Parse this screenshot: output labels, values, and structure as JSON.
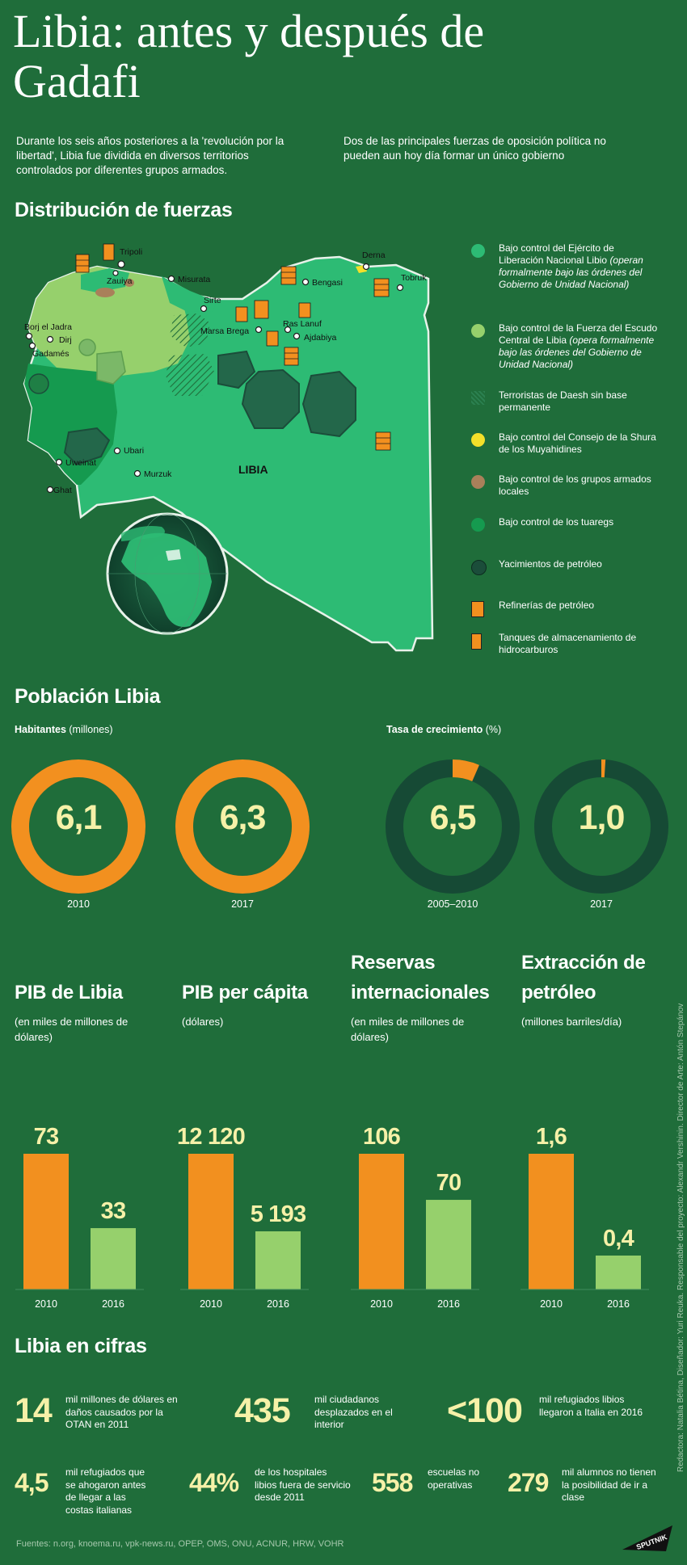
{
  "title": "Libia: antes y después de Gadafi",
  "intro_left": "Durante los seis años posteriores a la 'revolución por la libertad', Libia fue dividida en diversos territorios controlados por diferentes grupos armados.",
  "intro_right": "Dos de las principales fuerzas de oposición política no pueden aun hoy día formar un único gobierno",
  "map_section": {
    "title": "Distribución de fuerzas",
    "country_label": "LIBIA",
    "cities": [
      "Tripoli",
      "Zauiya",
      "Misurata",
      "Derna",
      "Bengasi",
      "Tobruk",
      "Sirte",
      "Marsa Brega",
      "Ras Lanuf",
      "Ajdabiya",
      "Borj el Jadra",
      "Dirj",
      "Gadamés",
      "Ubari",
      "Uweinat",
      "Murzuk",
      "Ghat"
    ],
    "legend": [
      {
        "text": "Bajo control del Ejército de Liberación Nacional Libio",
        "note": "(operan formalmente bajo las órdenes del Gobierno de Unidad Nacional)",
        "color": "#2dbb74"
      },
      {
        "text": "Bajo control de la Fuerza del Escudo Central de Libia",
        "note": "(opera formalmente bajo las órdenes del Gobierno de Unidad Nacional)",
        "color": "#96d06c"
      },
      {
        "text": "Terroristas de Daesh sin base permanente",
        "note": "",
        "color": "#1f6d3a"
      },
      {
        "text": "Bajo control del Consejo de la Shura de los Muyahidines",
        "note": "",
        "color": "#f3e02a"
      },
      {
        "text": "Bajo control de los grupos armados locales",
        "note": "",
        "color": "#a9805a"
      },
      {
        "text": "Bajo control de los tuaregs",
        "note": "",
        "color": "#159a4f"
      },
      {
        "text": "Yacimientos de petróleo",
        "note": "",
        "color": "#1b4d3a"
      },
      {
        "text": "Refinerías de petróleo",
        "note": "",
        "color": "#f2901f"
      },
      {
        "text": "Tanques de almacenamiento de hidrocarburos",
        "note": "",
        "color": "#f2901f"
      }
    ]
  },
  "population": {
    "title": "Población  Libia",
    "hab_label": "Habitantes",
    "hab_unit": "(millones)",
    "rate_label": "Tasa de crecimiento",
    "rate_unit": "(%)",
    "rings": [
      {
        "value": "6,1",
        "year": "2010",
        "fraction": 1.0
      },
      {
        "value": "6,3",
        "year": "2017",
        "fraction": 1.0
      },
      {
        "value": "6,5",
        "year": "2005–2010",
        "fraction": 0.065
      },
      {
        "value": "1,0",
        "year": "2017",
        "fraction": 0.01
      }
    ],
    "colors": {
      "fill": "#f2901f",
      "track": "#164a35"
    }
  },
  "chart_data": [
    {
      "type": "bar",
      "title": "PIB de Libia",
      "ylabel": "(en miles de millones de dólares)",
      "categories": [
        "2010",
        "2016"
      ],
      "values": [
        73,
        33
      ],
      "labels": [
        "73",
        "33"
      ]
    },
    {
      "type": "bar",
      "title": "PIB per cápita",
      "ylabel": "(dólares)",
      "categories": [
        "2010",
        "2016"
      ],
      "values": [
        12120,
        5193
      ],
      "labels": [
        "12 120",
        "5 193"
      ]
    },
    {
      "type": "bar",
      "title": "Reservas internacionales",
      "ylabel": "(en miles de millones de dólares)",
      "categories": [
        "2010",
        "2016"
      ],
      "values": [
        106,
        70
      ],
      "labels": [
        "106",
        "70"
      ]
    },
    {
      "type": "bar",
      "title": "Extracción de petróleo",
      "ylabel": "(millones barriles/día)",
      "categories": [
        "2010",
        "2016"
      ],
      "values": [
        1.6,
        0.4
      ],
      "labels": [
        "1,6",
        "0,4"
      ]
    }
  ],
  "bar_colors": {
    "2010": "#f2901f",
    "2016": "#96d06c"
  },
  "figures": {
    "title": "Libia en cifras",
    "items": [
      {
        "num": "14",
        "text": "mil millones de dólares en daños causados por la OTAN en 2011"
      },
      {
        "num": "435",
        "text": "mil ciudadanos desplazados en el interior"
      },
      {
        "num": "<100",
        "text": "mil refugiados libios llegaron a Italia en 2016"
      },
      {
        "num": "4,5",
        "text": "mil refugiados que se ahogaron antes de llegar a las costas italianas"
      },
      {
        "num": "44%",
        "text": "de los hospitales libios fuera de servicio desde 2011"
      },
      {
        "num": "558",
        "text": "escuelas no operativas"
      },
      {
        "num": "279",
        "text": "mil alumnos no tienen la posibilidad de ir a clase"
      }
    ]
  },
  "sources": "Fuentes: n.org, knoema.ru, vpk-news.ru, OPEP, OMS, ONU, ACNUR, HRW, VOHR",
  "credits": "Redactora: Natalia Bétina, Diseñador: Yuri Reuka. Responsable del proyecto: Alexandr Vershinin. Director de Arte: Antón Stepánov",
  "logo": "SPUTNIK"
}
